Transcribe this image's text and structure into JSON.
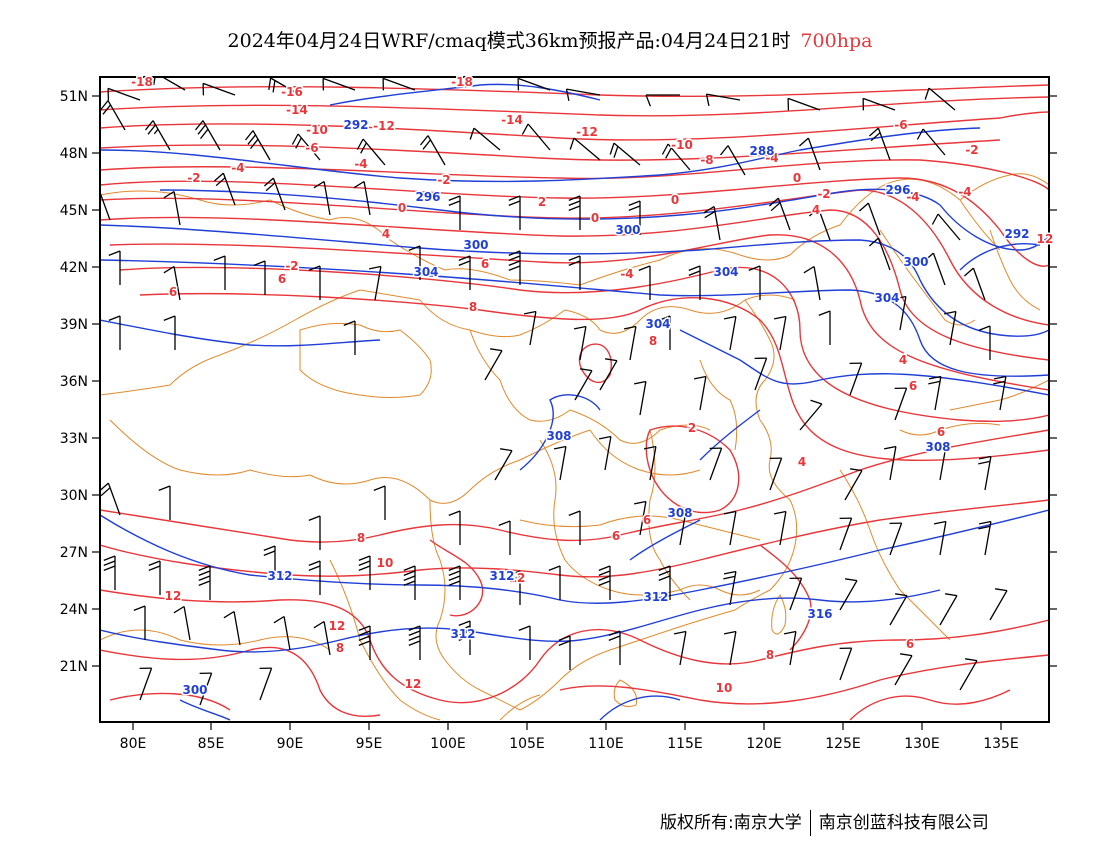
{
  "title": {
    "main": "2024年04月24日WRF/cmaq模式36km预报产品:04月24日21时",
    "level": "700hpa"
  },
  "map": {
    "lat_labels": [
      "51N",
      "48N",
      "45N",
      "42N",
      "39N",
      "36N",
      "33N",
      "30N",
      "27N",
      "24N",
      "21N"
    ],
    "lon_labels": [
      "80E",
      "85E",
      "90E",
      "95E",
      "100E",
      "105E",
      "110E",
      "115E",
      "120E",
      "125E",
      "130E",
      "135E"
    ],
    "colors": {
      "temperature": "#e8363a",
      "height": "#1f3fd6",
      "boundary": "#e08a2c",
      "wind": "#000000"
    },
    "temperature_labels": [
      "-18",
      "-16",
      "-18",
      "-14",
      "-14",
      "-12",
      "-12",
      "-10",
      "-10",
      "-8",
      "-6",
      "-6",
      "-4",
      "-4",
      "-4",
      "-2",
      "-2",
      "-2",
      "0",
      "0",
      "0",
      "0",
      "-2",
      "-4",
      "-4",
      "2",
      "4",
      "6",
      "-4",
      "-2",
      "4",
      "6",
      "6",
      "8",
      "8",
      "6",
      "4",
      "2",
      "4",
      "6",
      "6",
      "6",
      "8",
      "10",
      "12",
      "12",
      "12",
      "8",
      "10",
      "6",
      "8",
      "12",
      "12"
    ],
    "height_labels": [
      "288",
      "292",
      "296",
      "296",
      "300",
      "300",
      "300",
      "304",
      "304",
      "304",
      "304",
      "292",
      "308",
      "308",
      "308",
      "312",
      "312",
      "312",
      "312",
      "316",
      "300"
    ],
    "footer": {
      "copyright": "版权所有:南京大学",
      "company": "南京创蓝科技有限公司"
    }
  }
}
